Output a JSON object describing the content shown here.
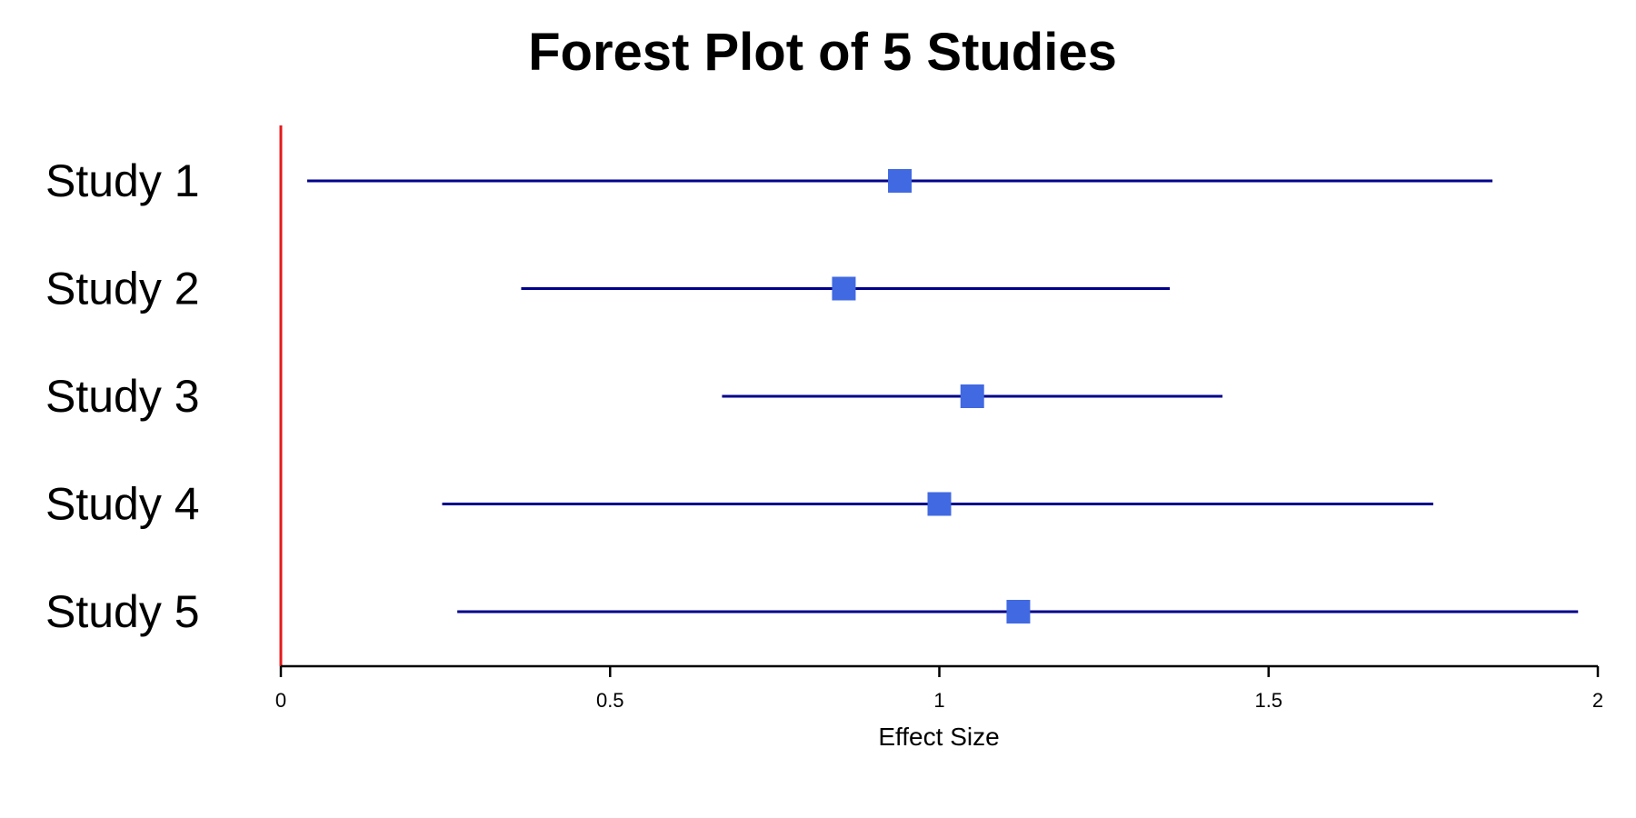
{
  "colors": {
    "ci_line": "#00008B",
    "point": "#4169E1",
    "reference_line": "#E41A1C",
    "axis": "#000000"
  },
  "chart_data": {
    "type": "forest",
    "title": "Forest Plot of 5 Studies",
    "xlabel": "Effect Size",
    "ylabel": "",
    "xlim": [
      0,
      2
    ],
    "xticks": [
      {
        "value": 0,
        "label": "0"
      },
      {
        "value": 0.5,
        "label": "0.5"
      },
      {
        "value": 1,
        "label": "1"
      },
      {
        "value": 1.5,
        "label": "1.5"
      },
      {
        "value": 2,
        "label": "2"
      }
    ],
    "reference_line": 0,
    "grid": false,
    "legend": "none",
    "studies": [
      {
        "label": "Study 1",
        "estimate": 0.94,
        "lower": 0.04,
        "upper": 1.84
      },
      {
        "label": "Study 2",
        "estimate": 0.855,
        "lower": 0.365,
        "upper": 1.35
      },
      {
        "label": "Study 3",
        "estimate": 1.05,
        "lower": 0.67,
        "upper": 1.43
      },
      {
        "label": "Study 4",
        "estimate": 1.0,
        "lower": 0.245,
        "upper": 1.75
      },
      {
        "label": "Study 5",
        "estimate": 1.12,
        "lower": 0.268,
        "upper": 1.97
      }
    ]
  }
}
